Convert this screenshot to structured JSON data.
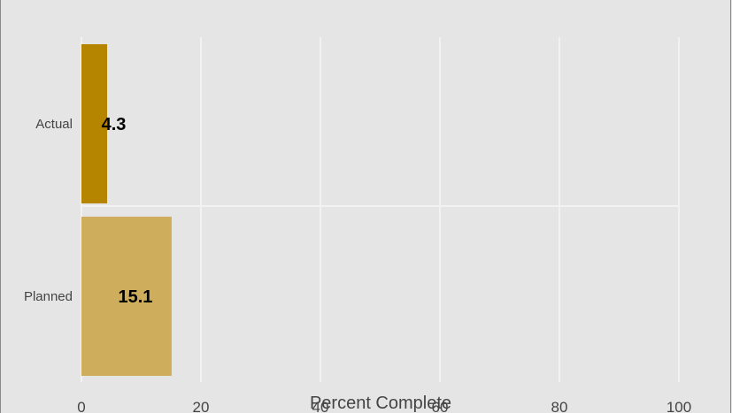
{
  "chart_data": {
    "type": "bar",
    "orientation": "horizontal",
    "categories": [
      "Actual",
      "Planned"
    ],
    "values": [
      4.3,
      15.1
    ],
    "data_labels": [
      "4.3",
      "15.1"
    ],
    "colors": [
      "#b58500",
      "#ceae5c"
    ],
    "xlabel": "Percent Complete",
    "xlim": [
      0,
      100
    ],
    "xticks": [
      "0",
      "20",
      "40",
      "60",
      "80",
      "100"
    ],
    "grid": true,
    "background": "#e5e5e5",
    "grid_color": "#f2f2f2"
  }
}
